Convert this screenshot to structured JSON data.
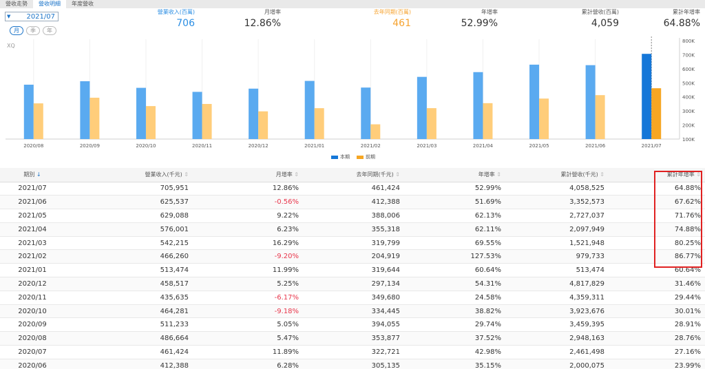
{
  "tabs": [
    {
      "label": "營收走勢",
      "active": false
    },
    {
      "label": "營收明細",
      "active": true
    },
    {
      "label": "年度營收",
      "active": false
    }
  ],
  "period": {
    "selected": "2021/07"
  },
  "frequency": [
    {
      "label": "月",
      "active": true
    },
    {
      "label": "季",
      "active": false
    },
    {
      "label": "年",
      "active": false
    }
  ],
  "summary": {
    "revenue": {
      "label": "營業收入(百萬)",
      "value": "706"
    },
    "mom": {
      "label": "月增率",
      "value": "12.86%"
    },
    "last_year": {
      "label": "去年同期(百萬)",
      "value": "461"
    },
    "yoy": {
      "label": "年增率",
      "value": "52.99%"
    },
    "cumulative": {
      "label": "累計營收(百萬)",
      "value": "4,059"
    },
    "cum_yoy": {
      "label": "累計年增率",
      "value": "64.88%"
    }
  },
  "watermark": "XQ",
  "colors": {
    "current": "#5aaaf0",
    "current_highlight": "#1577d8",
    "previous": "#ffcd7a",
    "previous_highlight": "#f6a623",
    "negative": "#e8354a",
    "highlight_box": "#e02020"
  },
  "chart_data": {
    "type": "bar",
    "categories": [
      "2020/08",
      "2020/09",
      "2020/10",
      "2020/11",
      "2020/12",
      "2021/01",
      "2021/02",
      "2021/03",
      "2021/04",
      "2021/05",
      "2021/06",
      "2021/07"
    ],
    "series": [
      {
        "name": "本期",
        "values": [
          486664,
          511233,
          464281,
          435635,
          458517,
          513474,
          466260,
          542215,
          576001,
          629088,
          625537,
          705951
        ]
      },
      {
        "name": "前期",
        "values": [
          353877,
          394055,
          334445,
          349680,
          297134,
          319644,
          204919,
          319799,
          355318,
          388006,
          412388,
          461424
        ]
      }
    ],
    "y_ticks": [
      "100K",
      "200K",
      "300K",
      "400K",
      "500K",
      "600K",
      "700K",
      "800K"
    ],
    "ylim": [
      100000,
      800000
    ],
    "highlight_category": "2021/07",
    "legend": [
      "本期",
      "前期"
    ]
  },
  "table": {
    "headers": [
      "期別",
      "營業收入(千元)",
      "月增率",
      "去年同期(千元)",
      "年增率",
      "累計營收(千元)",
      "累計年增率"
    ],
    "rows": [
      [
        "2021/07",
        "705,951",
        "12.86%",
        "461,424",
        "52.99%",
        "4,058,525",
        "64.88%"
      ],
      [
        "2021/06",
        "625,537",
        "-0.56%",
        "412,388",
        "51.69%",
        "3,352,573",
        "67.62%"
      ],
      [
        "2021/05",
        "629,088",
        "9.22%",
        "388,006",
        "62.13%",
        "2,727,037",
        "71.76%"
      ],
      [
        "2021/04",
        "576,001",
        "6.23%",
        "355,318",
        "62.11%",
        "2,097,949",
        "74.88%"
      ],
      [
        "2021/03",
        "542,215",
        "16.29%",
        "319,799",
        "69.55%",
        "1,521,948",
        "80.25%"
      ],
      [
        "2021/02",
        "466,260",
        "-9.20%",
        "204,919",
        "127.53%",
        "979,733",
        "86.77%"
      ],
      [
        "2021/01",
        "513,474",
        "11.99%",
        "319,644",
        "60.64%",
        "513,474",
        "60.64%"
      ],
      [
        "2020/12",
        "458,517",
        "5.25%",
        "297,134",
        "54.31%",
        "4,817,829",
        "31.46%"
      ],
      [
        "2020/11",
        "435,635",
        "-6.17%",
        "349,680",
        "24.58%",
        "4,359,311",
        "29.44%"
      ],
      [
        "2020/10",
        "464,281",
        "-9.18%",
        "334,445",
        "38.82%",
        "3,923,676",
        "30.01%"
      ],
      [
        "2020/09",
        "511,233",
        "5.05%",
        "394,055",
        "29.74%",
        "3,459,395",
        "28.91%"
      ],
      [
        "2020/08",
        "486,664",
        "5.47%",
        "353,877",
        "37.52%",
        "2,948,163",
        "28.76%"
      ],
      [
        "2020/07",
        "461,424",
        "11.89%",
        "322,721",
        "42.98%",
        "2,461,498",
        "27.16%"
      ],
      [
        "2020/06",
        "412,388",
        "6.28%",
        "305,135",
        "35.15%",
        "2,000,075",
        "23.99%"
      ]
    ]
  }
}
